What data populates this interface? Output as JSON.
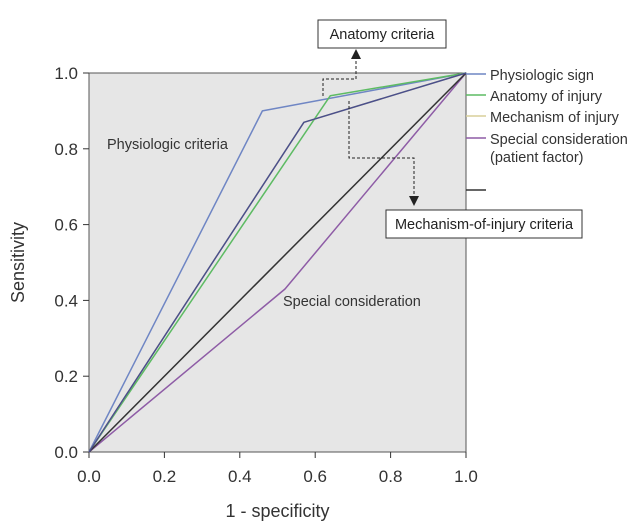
{
  "chart_data": {
    "type": "line",
    "title": "",
    "xlabel": "1 - specificity",
    "ylabel": "Sensitivity",
    "xlim": [
      0.0,
      1.0
    ],
    "ylim": [
      0.0,
      1.0
    ],
    "xticks": [
      "0.0",
      "0.2",
      "0.4",
      "0.6",
      "0.8",
      "1.0"
    ],
    "yticks": [
      "0.0",
      "0.2",
      "0.4",
      "0.6",
      "0.8",
      "1.0"
    ],
    "grid": false,
    "background": "#e6e6e6",
    "legend_position": "right",
    "series": [
      {
        "name": "Physiologic sign",
        "color": "#6f86c4",
        "points": [
          [
            0,
            0
          ],
          [
            0.46,
            0.9
          ],
          [
            1,
            1
          ]
        ]
      },
      {
        "name": "Anatomy of injury",
        "color": "#5dbb63",
        "points": [
          [
            0,
            0
          ],
          [
            0.64,
            0.94
          ],
          [
            1,
            1
          ]
        ]
      },
      {
        "name": "Mechanism of injury",
        "color": "#d8cf9a",
        "points": [
          [
            0,
            0
          ],
          [
            0.57,
            0.87
          ],
          [
            1,
            1
          ]
        ]
      },
      {
        "name": "Special consideration\n(patient factor)",
        "color": "#8e5ca6",
        "points": [
          [
            0,
            0
          ],
          [
            0.52,
            0.43
          ],
          [
            1,
            1
          ]
        ]
      },
      {
        "name": "",
        "color": "#333333",
        "points": [
          [
            0,
            0
          ],
          [
            1,
            1
          ]
        ]
      },
      {
        "name": "",
        "color": "#4a4f8c",
        "points": [
          [
            0,
            0
          ],
          [
            0.57,
            0.87
          ],
          [
            1,
            1
          ]
        ]
      }
    ],
    "annotations": [
      {
        "text": "Physiologic criteria",
        "type": "text"
      },
      {
        "text": "Special consideration",
        "type": "text"
      },
      {
        "text": "Anatomy criteria",
        "type": "box"
      },
      {
        "text": "Mechanism-of-injury criteria",
        "type": "box"
      }
    ]
  }
}
